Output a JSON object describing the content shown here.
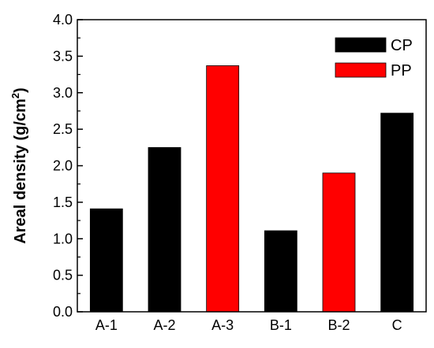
{
  "chart_data": {
    "type": "bar",
    "categories": [
      "A-1",
      "A-2",
      "A-3",
      "B-1",
      "B-2",
      "C"
    ],
    "values": [
      1.41,
      2.25,
      3.37,
      1.11,
      1.9,
      2.72
    ],
    "bar_series": [
      "CP",
      "CP",
      "PP",
      "CP",
      "PP",
      "CP"
    ],
    "series": [
      {
        "name": "CP",
        "color": "#000000"
      },
      {
        "name": "PP",
        "color": "#ff0000"
      }
    ],
    "title": "",
    "xlabel": "",
    "ylabel": "Areal density (g/cm²)",
    "ylabel_parts": {
      "base": "Areal density (g/cm",
      "sup": "2",
      "end": ")"
    },
    "ylim": [
      0.0,
      4.0
    ],
    "yticks": [
      "0.0",
      "0.5",
      "1.0",
      "1.5",
      "2.0",
      "2.5",
      "3.0",
      "3.5",
      "4.0"
    ],
    "legend_position": "top-right",
    "grid": false
  }
}
